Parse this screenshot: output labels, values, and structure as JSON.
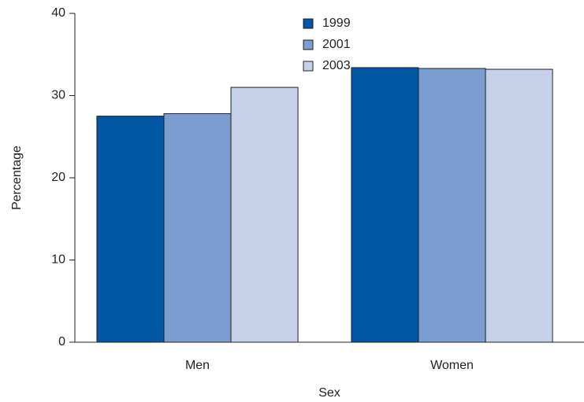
{
  "chart_data": {
    "type": "bar",
    "x_label": "Sex",
    "y_label": "Percentage",
    "categories": [
      "Men",
      "Women"
    ],
    "series": [
      {
        "name": "1999",
        "color": "#0057a3",
        "values": [
          27.5,
          33.4
        ]
      },
      {
        "name": "2001",
        "color": "#7b9dcf",
        "values": [
          27.8,
          33.3
        ]
      },
      {
        "name": "2003",
        "color": "#c6d1e9",
        "values": [
          31.0,
          33.2
        ]
      }
    ],
    "ylim": [
      0,
      40
    ],
    "yticks": [
      0,
      10,
      20,
      30,
      40
    ],
    "grid": false,
    "legend": "top-center"
  }
}
